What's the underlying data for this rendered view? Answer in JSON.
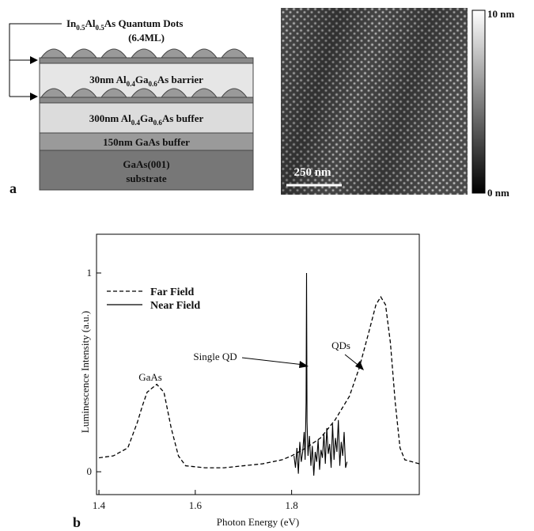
{
  "panel_a": {
    "label": "a",
    "qd_label": [
      "In",
      "0.5",
      "Al",
      "0.5",
      "As Quantum Dots"
    ],
    "qd_thickness": "(6.4ML)",
    "layers": [
      {
        "parts": [
          "30nm  Al",
          "0.4",
          "Ga",
          "0.6",
          "As barrier"
        ]
      },
      {
        "parts": [
          "300nm  Al",
          "0.4",
          "Ga",
          "0.6",
          "As buffer"
        ]
      },
      {
        "parts": [
          "150nm  GaAs buffer"
        ]
      },
      {
        "parts": [
          "GaAs(001)"
        ],
        "second_line": "substrate"
      }
    ],
    "scale_bar": "250 nm",
    "colorbar_max": "10 nm",
    "colorbar_min": "0 nm"
  },
  "chart_data": {
    "type": "line",
    "panel_label": "b",
    "xlabel": "Photon Energy (eV)",
    "ylabel": "Luminescence Intensity (a.u.)",
    "xlim": [
      1.395,
      2.065
    ],
    "ylim": [
      -0.115,
      1.195
    ],
    "xticks": [
      1.4,
      1.6,
      1.8
    ],
    "yticks": [
      0,
      1
    ],
    "legend": "upper left",
    "annotations": [
      "GaAs",
      "Single QD",
      "QDs"
    ],
    "series": [
      {
        "name": "Far Field",
        "color": "#000000",
        "dash": "dashed",
        "x": [
          1.4,
          1.43,
          1.46,
          1.48,
          1.49,
          1.5,
          1.52,
          1.535,
          1.55,
          1.565,
          1.58,
          1.62,
          1.66,
          1.7,
          1.74,
          1.78,
          1.8,
          1.83,
          1.86,
          1.89,
          1.92,
          1.94,
          1.96,
          1.975,
          1.985,
          1.995,
          2.005,
          2.015,
          2.025,
          2.035,
          2.05,
          2.065
        ],
        "values": [
          0.07,
          0.08,
          0.12,
          0.25,
          0.33,
          0.4,
          0.44,
          0.4,
          0.22,
          0.08,
          0.03,
          0.02,
          0.02,
          0.03,
          0.04,
          0.06,
          0.08,
          0.12,
          0.17,
          0.26,
          0.38,
          0.52,
          0.7,
          0.84,
          0.88,
          0.84,
          0.65,
          0.35,
          0.12,
          0.06,
          0.05,
          0.04
        ]
      },
      {
        "name": "Near Field",
        "color": "#000000",
        "dash": "solid",
        "x": [
          1.805,
          1.808,
          1.811,
          1.814,
          1.817,
          1.82,
          1.823,
          1.826,
          1.828,
          1.83,
          1.831,
          1.832,
          1.834,
          1.837,
          1.84,
          1.843,
          1.846,
          1.849,
          1.852,
          1.855,
          1.858,
          1.861,
          1.864,
          1.867,
          1.87,
          1.873,
          1.876,
          1.879,
          1.882,
          1.885,
          1.888,
          1.891,
          1.894,
          1.897,
          1.9,
          1.903,
          1.906,
          1.909,
          1.912,
          1.915
        ],
        "values": [
          0.08,
          0.02,
          0.12,
          -0.01,
          0.15,
          0.05,
          0.1,
          0.2,
          0.06,
          0.35,
          1.0,
          0.25,
          0.08,
          0.18,
          0.03,
          0.13,
          -0.02,
          0.1,
          0.05,
          0.16,
          0.01,
          0.11,
          0.07,
          0.19,
          0.04,
          0.22,
          0.09,
          0.14,
          0.02,
          0.24,
          0.06,
          0.17,
          0.1,
          0.26,
          0.03,
          0.15,
          0.08,
          0.2,
          0.02,
          0.05
        ]
      }
    ]
  }
}
